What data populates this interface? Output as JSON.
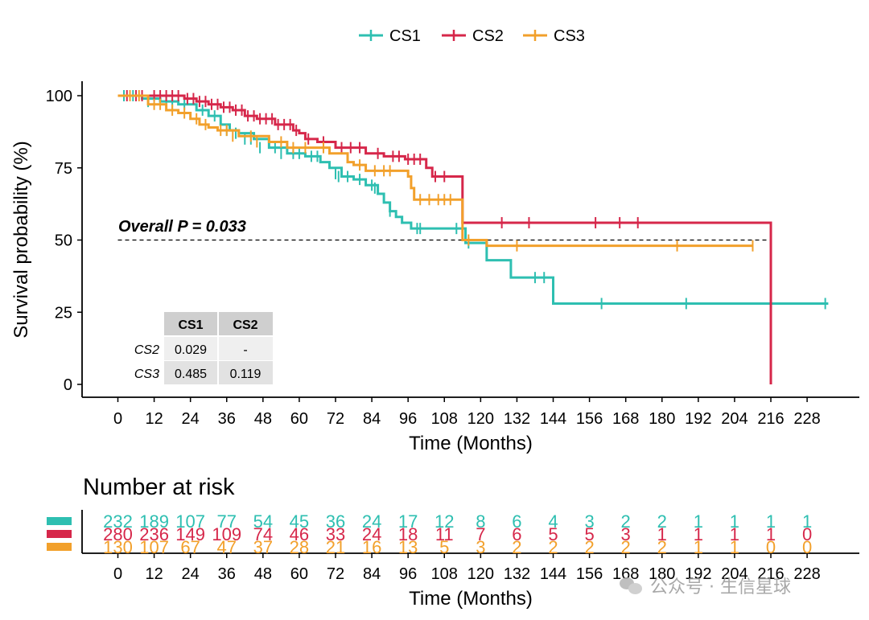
{
  "legend": [
    {
      "name": "CS1",
      "color": "#2ebfb1"
    },
    {
      "name": "CS2",
      "color": "#d6274a"
    },
    {
      "name": "CS3",
      "color": "#f2a02b"
    }
  ],
  "chart_data": {
    "type": "line",
    "ylabel": "Survival probability (%)",
    "xlabel": "Time (Months)",
    "xlim": [
      -6,
      240
    ],
    "ylim": [
      -4,
      105
    ],
    "x_ticks": [
      0,
      12,
      24,
      36,
      48,
      60,
      72,
      84,
      96,
      108,
      120,
      132,
      144,
      156,
      168,
      180,
      192,
      204,
      216,
      228
    ],
    "y_ticks": [
      0,
      25,
      50,
      75,
      100
    ],
    "grid": false,
    "legend_position": "top",
    "annotation": "Overall P = 0.033",
    "reference_line": {
      "y": 50,
      "x_from": 0,
      "x_to": 216,
      "style": "dashed"
    },
    "series": [
      {
        "name": "CS1",
        "color": "#2ebfb1",
        "steps": [
          [
            0,
            100
          ],
          [
            8,
            99
          ],
          [
            14,
            98
          ],
          [
            20,
            97
          ],
          [
            26,
            95
          ],
          [
            30,
            93
          ],
          [
            34,
            90
          ],
          [
            37,
            88
          ],
          [
            40,
            87
          ],
          [
            45,
            85
          ],
          [
            50,
            82
          ],
          [
            56,
            80
          ],
          [
            62,
            79
          ],
          [
            67,
            77
          ],
          [
            70,
            75
          ],
          [
            74,
            72
          ],
          [
            78,
            71
          ],
          [
            82,
            69
          ],
          [
            86,
            66
          ],
          [
            88,
            63
          ],
          [
            90,
            60
          ],
          [
            92,
            58
          ],
          [
            94,
            56
          ],
          [
            97,
            54
          ],
          [
            115,
            49
          ],
          [
            122,
            43
          ],
          [
            130,
            37
          ],
          [
            144,
            28
          ],
          [
            235,
            28
          ]
        ],
        "censored": [
          [
            2,
            100
          ],
          [
            5,
            100
          ],
          [
            10,
            98
          ],
          [
            16,
            98
          ],
          [
            18,
            97
          ],
          [
            22,
            97
          ],
          [
            28,
            95
          ],
          [
            32,
            93
          ],
          [
            36,
            88
          ],
          [
            39,
            87
          ],
          [
            42,
            85
          ],
          [
            44,
            85
          ],
          [
            47,
            82
          ],
          [
            52,
            82
          ],
          [
            54,
            80
          ],
          [
            58,
            80
          ],
          [
            60,
            80
          ],
          [
            64,
            79
          ],
          [
            66,
            79
          ],
          [
            72,
            73
          ],
          [
            73,
            72
          ],
          [
            76,
            72
          ],
          [
            80,
            71
          ],
          [
            84,
            69
          ],
          [
            85,
            68
          ],
          [
            90,
            60
          ],
          [
            99,
            54
          ],
          [
            100,
            54
          ],
          [
            112,
            54
          ],
          [
            116,
            49
          ],
          [
            138,
            37
          ],
          [
            141,
            37
          ],
          [
            160,
            28
          ],
          [
            188,
            28
          ],
          [
            234,
            28
          ]
        ]
      },
      {
        "name": "CS2",
        "color": "#d6274a",
        "steps": [
          [
            0,
            100
          ],
          [
            22,
            99
          ],
          [
            26,
            98
          ],
          [
            30,
            97
          ],
          [
            34,
            96
          ],
          [
            38,
            95
          ],
          [
            42,
            93
          ],
          [
            46,
            92
          ],
          [
            52,
            90
          ],
          [
            58,
            88
          ],
          [
            60,
            87
          ],
          [
            62,
            85
          ],
          [
            66,
            84
          ],
          [
            72,
            82
          ],
          [
            76,
            82
          ],
          [
            82,
            80
          ],
          [
            88,
            79
          ],
          [
            95,
            78
          ],
          [
            102,
            75
          ],
          [
            104,
            72
          ],
          [
            108,
            72
          ],
          [
            109,
            72
          ],
          [
            114,
            56
          ],
          [
            215,
            56
          ],
          [
            216,
            0
          ]
        ],
        "censored": [
          [
            3,
            100
          ],
          [
            6,
            100
          ],
          [
            8,
            100
          ],
          [
            12,
            100
          ],
          [
            14,
            100
          ],
          [
            16,
            100
          ],
          [
            18,
            100
          ],
          [
            20,
            100
          ],
          [
            23,
            99
          ],
          [
            25,
            99
          ],
          [
            27,
            98
          ],
          [
            29,
            98
          ],
          [
            31,
            97
          ],
          [
            33,
            97
          ],
          [
            35,
            96
          ],
          [
            37,
            96
          ],
          [
            39,
            95
          ],
          [
            41,
            95
          ],
          [
            43,
            93
          ],
          [
            45,
            93
          ],
          [
            47,
            92
          ],
          [
            49,
            92
          ],
          [
            51,
            92
          ],
          [
            53,
            90
          ],
          [
            55,
            90
          ],
          [
            57,
            90
          ],
          [
            59,
            88
          ],
          [
            63,
            85
          ],
          [
            68,
            84
          ],
          [
            74,
            82
          ],
          [
            77,
            82
          ],
          [
            80,
            82
          ],
          [
            86,
            80
          ],
          [
            91,
            79
          ],
          [
            93,
            79
          ],
          [
            96,
            78
          ],
          [
            98,
            78
          ],
          [
            100,
            78
          ],
          [
            105,
            72
          ],
          [
            108,
            72
          ],
          [
            127,
            56
          ],
          [
            136,
            56
          ],
          [
            158,
            56
          ],
          [
            166,
            56
          ],
          [
            172,
            56
          ]
        ]
      },
      {
        "name": "CS3",
        "color": "#f2a02b",
        "steps": [
          [
            0,
            100
          ],
          [
            10,
            97
          ],
          [
            16,
            95
          ],
          [
            20,
            94
          ],
          [
            24,
            92
          ],
          [
            27,
            90
          ],
          [
            30,
            89
          ],
          [
            33,
            88
          ],
          [
            40,
            86
          ],
          [
            50,
            84
          ],
          [
            56,
            82
          ],
          [
            60,
            82
          ],
          [
            70,
            80
          ],
          [
            76,
            77
          ],
          [
            78,
            76
          ],
          [
            82,
            74
          ],
          [
            94,
            74
          ],
          [
            96,
            72
          ],
          [
            97,
            68
          ],
          [
            98,
            64
          ],
          [
            114,
            50
          ],
          [
            122,
            48
          ],
          [
            210,
            48
          ]
        ],
        "censored": [
          [
            4,
            100
          ],
          [
            7,
            100
          ],
          [
            12,
            97
          ],
          [
            14,
            97
          ],
          [
            18,
            95
          ],
          [
            22,
            94
          ],
          [
            26,
            92
          ],
          [
            29,
            90
          ],
          [
            34,
            88
          ],
          [
            36,
            88
          ],
          [
            38,
            86
          ],
          [
            44,
            86
          ],
          [
            46,
            84
          ],
          [
            54,
            84
          ],
          [
            58,
            82
          ],
          [
            62,
            82
          ],
          [
            68,
            82
          ],
          [
            80,
            76
          ],
          [
            85,
            74
          ],
          [
            88,
            74
          ],
          [
            90,
            74
          ],
          [
            100,
            64
          ],
          [
            103,
            64
          ],
          [
            106,
            64
          ],
          [
            108,
            64
          ],
          [
            110,
            64
          ],
          [
            116,
            50
          ],
          [
            132,
            48
          ],
          [
            185,
            48
          ],
          [
            210,
            48
          ]
        ]
      }
    ],
    "pairwise_table": {
      "col_headers": [
        "CS1",
        "CS2"
      ],
      "rows": [
        {
          "label": "CS2",
          "values": [
            "0.029",
            "-"
          ]
        },
        {
          "label": "CS3",
          "values": [
            "0.485",
            "0.119"
          ]
        }
      ]
    }
  },
  "risk_table": {
    "title": "Number at risk",
    "xlabel": "Time (Months)",
    "times": [
      0,
      12,
      24,
      36,
      48,
      60,
      72,
      84,
      96,
      108,
      120,
      132,
      144,
      156,
      168,
      180,
      192,
      204,
      216,
      228
    ],
    "rows": [
      {
        "name": "CS1",
        "color": "#2ebfb1",
        "values": [
          "232",
          "189",
          "107",
          "77",
          "54",
          "45",
          "36",
          "24",
          "17",
          "12",
          "8",
          "6",
          "4",
          "3",
          "2",
          "2",
          "1",
          "1",
          "1",
          "1"
        ]
      },
      {
        "name": "CS2",
        "color": "#d6274a",
        "values": [
          "280",
          "236",
          "149",
          "109",
          "74",
          "46",
          "33",
          "24",
          "18",
          "11",
          "7",
          "6",
          "5",
          "5",
          "3",
          "1",
          "1",
          "1",
          "1",
          "0"
        ]
      },
      {
        "name": "CS3",
        "color": "#f2a02b",
        "values": [
          "130",
          "107",
          "67",
          "47",
          "37",
          "28",
          "21",
          "16",
          "13",
          "5",
          "3",
          "2",
          "2",
          "2",
          "2",
          "2",
          "1",
          "1",
          "0",
          "0"
        ]
      }
    ]
  },
  "watermark": {
    "text": "公众号 · 生信星球",
    "icon": "wechat-icon"
  }
}
